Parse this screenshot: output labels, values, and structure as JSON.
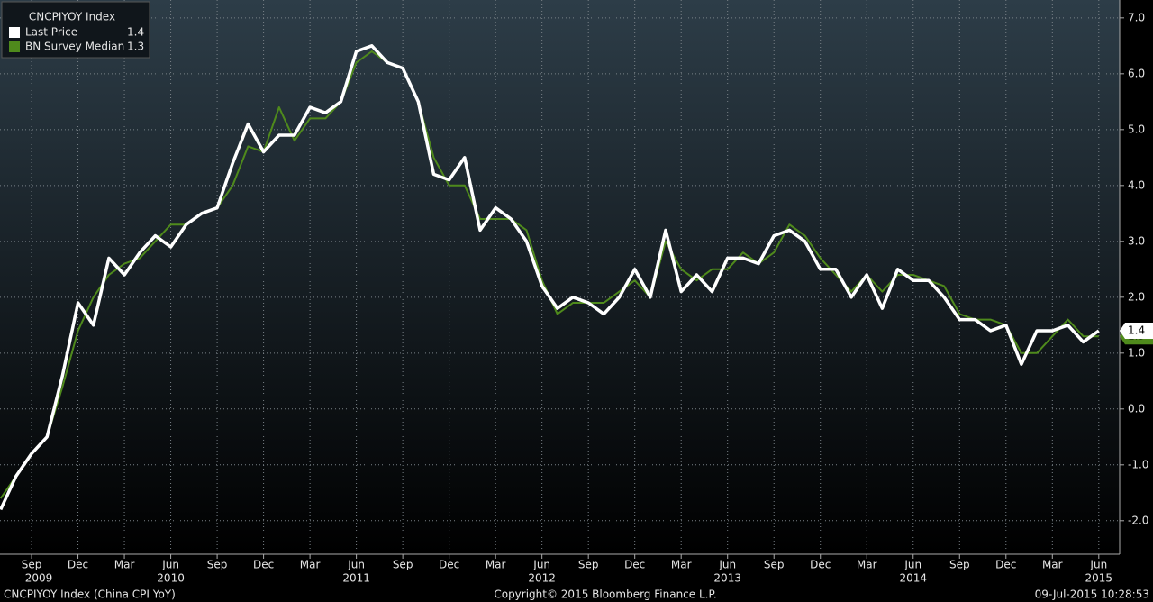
{
  "chart_data": {
    "type": "line",
    "legend_title": "CNCPIYOY Index",
    "footer_left": "CNCPIYOY Index (China CPI YoY)",
    "footer_center": "Copyright© 2015 Bloomberg Finance L.P.",
    "footer_right": "09-Jul-2015 10:28:53",
    "categories": [
      null,
      null,
      "Sep",
      null,
      null,
      "Dec",
      null,
      null,
      "Mar",
      null,
      null,
      "Jun",
      null,
      null,
      "Sep",
      null,
      null,
      "Dec",
      null,
      null,
      "Mar",
      null,
      null,
      "Jun",
      null,
      null,
      "Sep",
      null,
      null,
      "Dec",
      null,
      null,
      "Mar",
      null,
      null,
      "Jun",
      null,
      null,
      "Sep",
      null,
      null,
      "Dec",
      null,
      null,
      "Mar",
      null,
      null,
      "Jun",
      null,
      null,
      "Sep",
      null,
      null,
      "Dec",
      null,
      null,
      "Mar",
      null,
      null,
      "Jun",
      null,
      null,
      "Sep",
      null,
      null,
      "Dec",
      null,
      null,
      "Mar",
      null,
      null,
      "Jun"
    ],
    "years": [
      "2009",
      "2010",
      "2011",
      "2012",
      "2013",
      "2014",
      "2015"
    ],
    "series": [
      {
        "name": "BN Survey Median",
        "color": "#4f8a1c",
        "values": [
          -1.6,
          -1.2,
          -0.8,
          -0.5,
          0.4,
          1.4,
          2.0,
          2.4,
          2.6,
          2.7,
          3.0,
          3.3,
          3.3,
          3.5,
          3.6,
          4.0,
          4.7,
          4.6,
          5.4,
          4.8,
          5.2,
          5.2,
          5.5,
          6.2,
          6.4,
          6.2,
          6.1,
          5.5,
          4.5,
          4.0,
          4.0,
          3.4,
          3.4,
          3.4,
          3.2,
          2.3,
          1.7,
          1.9,
          1.9,
          1.9,
          2.1,
          2.3,
          2.0,
          3.0,
          2.5,
          2.3,
          2.5,
          2.5,
          2.8,
          2.6,
          2.8,
          3.3,
          3.1,
          2.7,
          2.4,
          2.1,
          2.4,
          2.1,
          2.4,
          2.4,
          2.3,
          2.2,
          1.7,
          1.6,
          1.6,
          1.5,
          1.0,
          1.0,
          1.3,
          1.6,
          1.3,
          1.3
        ]
      },
      {
        "name": "Last Price",
        "color": "#ffffff",
        "values": [
          -1.8,
          -1.2,
          -0.8,
          -0.5,
          0.6,
          1.9,
          1.5,
          2.7,
          2.4,
          2.8,
          3.1,
          2.9,
          3.3,
          3.5,
          3.6,
          4.4,
          5.1,
          4.6,
          4.9,
          4.9,
          5.4,
          5.3,
          5.5,
          6.4,
          6.5,
          6.2,
          6.1,
          5.5,
          4.2,
          4.1,
          4.5,
          3.2,
          3.6,
          3.4,
          3.0,
          2.2,
          1.8,
          2.0,
          1.9,
          1.7,
          2.0,
          2.5,
          2.0,
          3.2,
          2.1,
          2.4,
          2.1,
          2.7,
          2.7,
          2.6,
          3.1,
          3.2,
          3.0,
          2.5,
          2.5,
          2.0,
          2.4,
          1.8,
          2.5,
          2.3,
          2.3,
          2.0,
          1.6,
          1.6,
          1.4,
          1.5,
          0.8,
          1.4,
          1.4,
          1.5,
          1.2,
          1.4
        ]
      }
    ],
    "ylim": [
      -2.6,
      7.32
    ],
    "yticks": [
      {
        "value": -2,
        "label": "-2.0"
      },
      {
        "value": -1,
        "label": "-1.0"
      },
      {
        "value": 0,
        "label": "0.0"
      },
      {
        "value": 1,
        "label": "1.0"
      },
      {
        "value": 2,
        "label": "2.0"
      },
      {
        "value": 3,
        "label": "3.0"
      },
      {
        "value": 4,
        "label": "4.0"
      },
      {
        "value": 5,
        "label": "5.0"
      },
      {
        "value": 6,
        "label": "6.0"
      },
      {
        "value": 7,
        "label": "7.0"
      }
    ],
    "grid": true
  }
}
